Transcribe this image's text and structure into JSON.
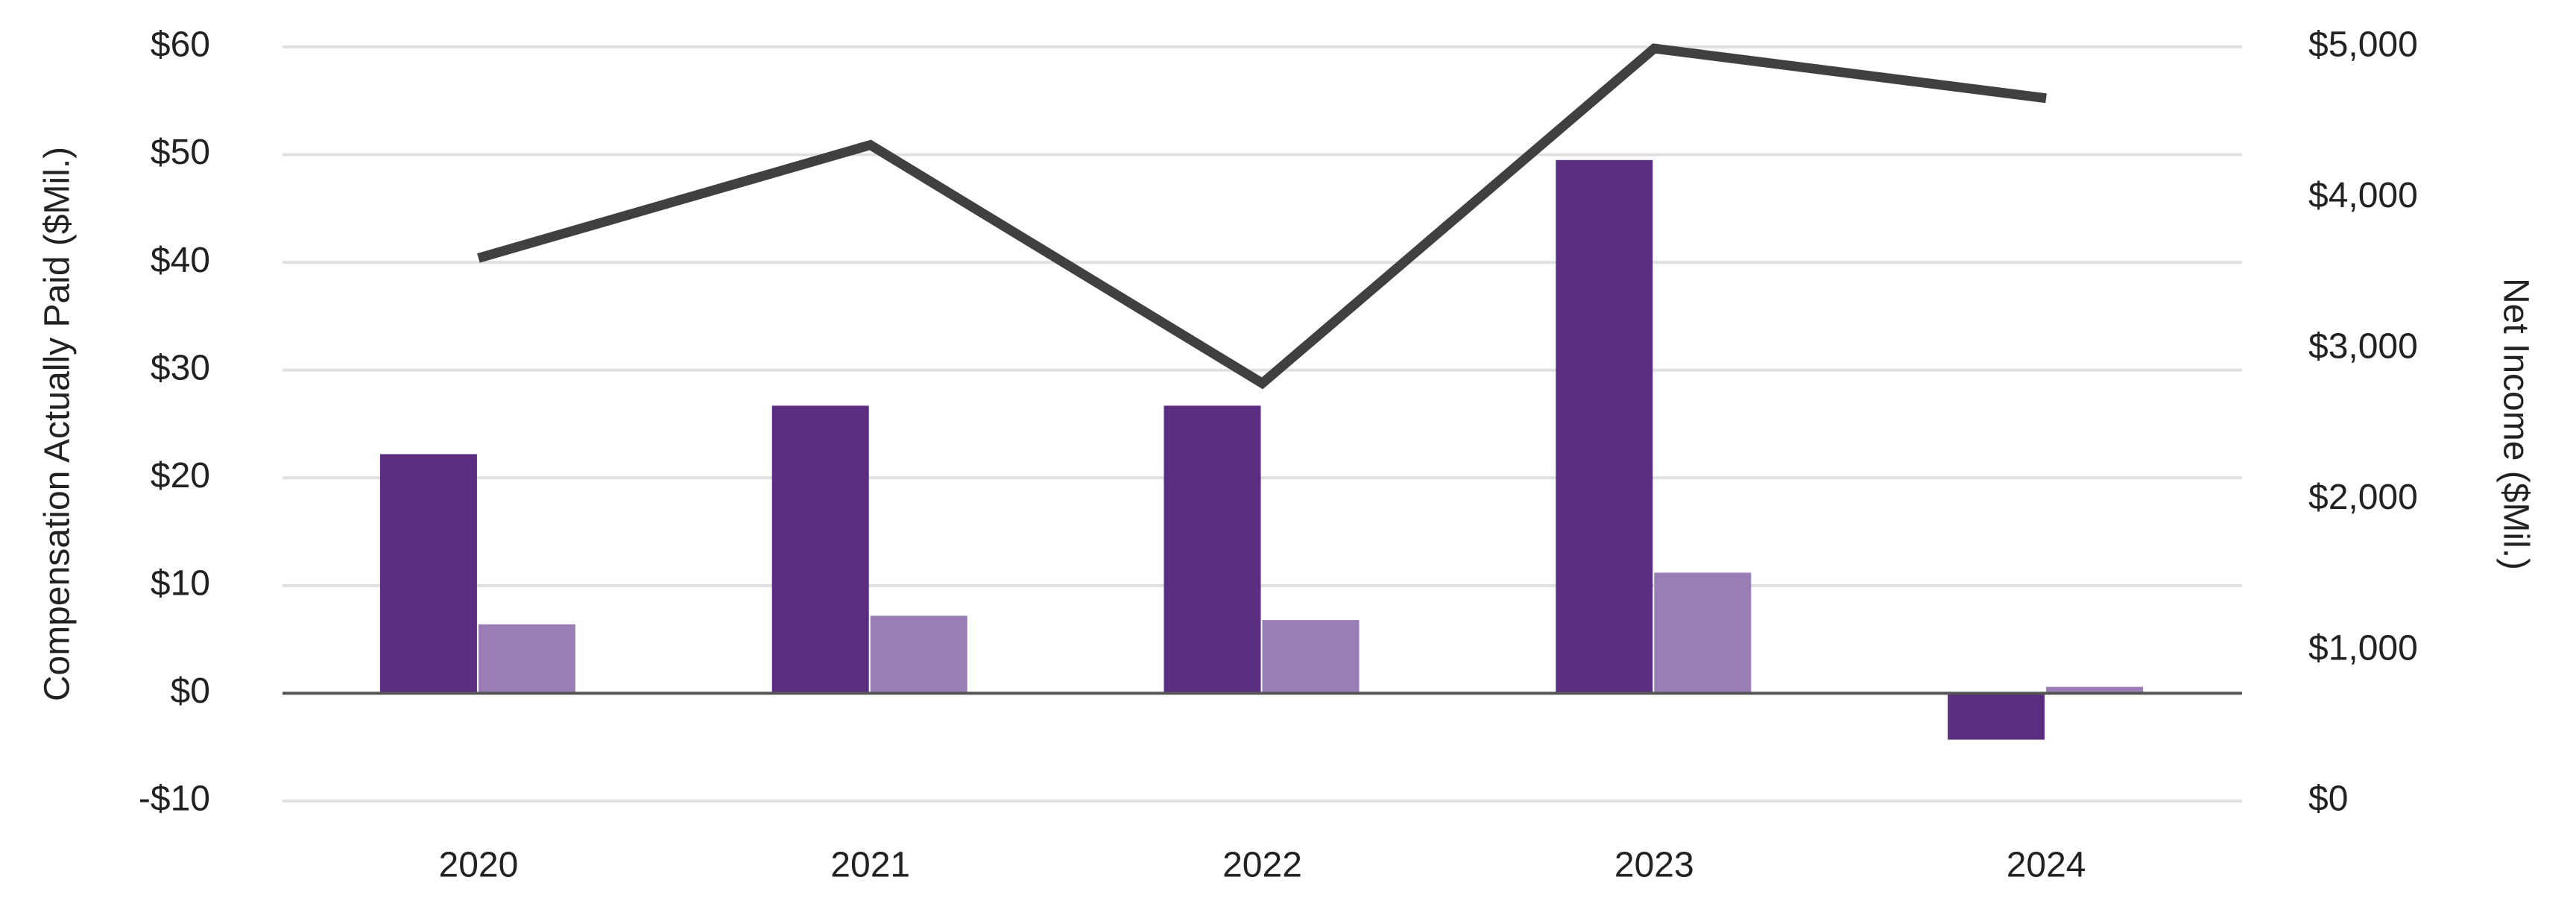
{
  "chart_data": {
    "type": "bar_line",
    "y_label": "Compensation Actually Paid ($Mil.)",
    "y2_label": "Net Income ($Mil.)",
    "categories": [
      "2020",
      "2021",
      "2022",
      "2023",
      "2024"
    ],
    "series": [
      {
        "type": "bar",
        "color": "#5a2d81",
        "values": [
          22.2,
          26.7,
          26.7,
          49.5,
          -4.3
        ]
      },
      {
        "type": "bar",
        "color": "#9b7db5",
        "values": [
          6.4,
          7.2,
          6.8,
          11.2,
          0.6
        ]
      },
      {
        "type": "line",
        "axis": "y2",
        "color": "#404040",
        "values": [
          3600,
          4350,
          2770,
          4990,
          4660
        ]
      }
    ],
    "ylim": [
      -10,
      60
    ],
    "yticks": [
      {
        "value": -10,
        "label": "-$10"
      },
      {
        "value": 0,
        "label": "$0"
      },
      {
        "value": 10,
        "label": "$10"
      },
      {
        "value": 20,
        "label": "$20"
      },
      {
        "value": 30,
        "label": "$30"
      },
      {
        "value": 40,
        "label": "$40"
      },
      {
        "value": 50,
        "label": "$50"
      },
      {
        "value": 60,
        "label": "$60"
      }
    ],
    "y2lim": [
      0,
      5000
    ],
    "y2ticks": [
      {
        "value": 0,
        "label": "$0"
      },
      {
        "value": 1000,
        "label": "$1,000"
      },
      {
        "value": 2000,
        "label": "$2,000"
      },
      {
        "value": 3000,
        "label": "$3,000"
      },
      {
        "value": 4000,
        "label": "$4,000"
      },
      {
        "value": 5000,
        "label": "$5,000"
      }
    ],
    "grid": true
  }
}
